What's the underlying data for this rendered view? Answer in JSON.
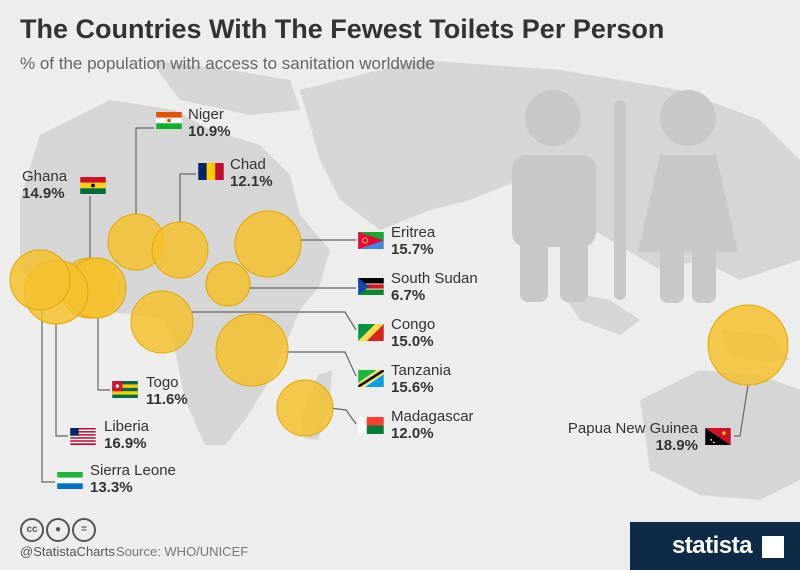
{
  "header": {
    "title": "The Countries With The Fewest Toilets Per Person",
    "subtitle": "% of the population with access to sanitation worldwide"
  },
  "chart_data": {
    "type": "bubble-map",
    "title": "The Countries With The Fewest Toilets Per Person",
    "subtitle": "% of the population with access to sanitation worldwide",
    "unit": "%",
    "points": [
      {
        "country": "Niger",
        "value": 10.9
      },
      {
        "country": "Chad",
        "value": 12.1
      },
      {
        "country": "Ghana",
        "value": 14.9
      },
      {
        "country": "Eritrea",
        "value": 15.7
      },
      {
        "country": "South Sudan",
        "value": 6.7
      },
      {
        "country": "Congo",
        "value": 15.0
      },
      {
        "country": "Tanzania",
        "value": 15.6
      },
      {
        "country": "Togo",
        "value": 11.6
      },
      {
        "country": "Madagascar",
        "value": 12.0
      },
      {
        "country": "Liberia",
        "value": 16.9
      },
      {
        "country": "Sierra Leone",
        "value": 13.3
      },
      {
        "country": "Papua New Guinea",
        "value": 18.9
      }
    ],
    "bubble_color": "#f5c12e"
  },
  "labels": [
    {
      "name": "Niger",
      "value": "10.9%"
    },
    {
      "name": "Chad",
      "value": "12.1%"
    },
    {
      "name": "Ghana",
      "value": "14.9%"
    },
    {
      "name": "Eritrea",
      "value": "15.7%"
    },
    {
      "name": "South Sudan",
      "value": "6.7%"
    },
    {
      "name": "Congo",
      "value": "15.0%"
    },
    {
      "name": "Tanzania",
      "value": "15.6%"
    },
    {
      "name": "Togo",
      "value": "11.6%"
    },
    {
      "name": "Madagascar",
      "value": "12.0%"
    },
    {
      "name": "Liberia",
      "value": "16.9%"
    },
    {
      "name": "Sierra Leone",
      "value": "13.3%"
    },
    {
      "name": "Papua New Guinea",
      "value": "18.9%"
    }
  ],
  "footer": {
    "handle": "@StatistaCharts",
    "source": "Source: WHO/UNICEF",
    "brand": "statista"
  },
  "icons": {
    "creative_commons": "cc-icon",
    "attribution": "attribution-icon",
    "no_derivatives": "no-derivatives-icon"
  },
  "colors": {
    "background": "#ededed",
    "map": "#d6d6d6",
    "bubble": "#f5c12e",
    "brand": "#0e2a47"
  }
}
